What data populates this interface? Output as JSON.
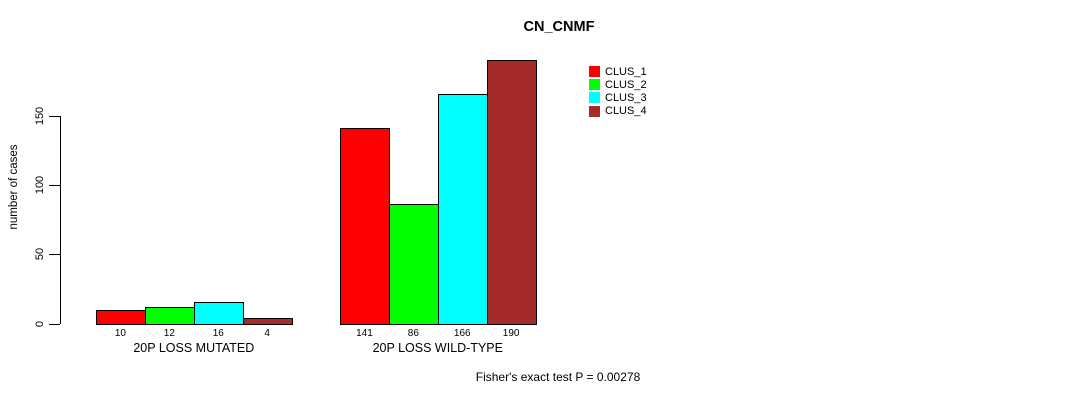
{
  "chart_data": {
    "type": "bar",
    "title": "CN_CNMF",
    "ylabel": "number of cases",
    "xlabel": "",
    "ylim": [
      0,
      193
    ],
    "yticks": [
      0,
      50,
      100,
      150
    ],
    "grid": false,
    "legend_position": "top-right",
    "categories": [
      "20P LOSS MUTATED",
      "20P LOSS WILD-TYPE"
    ],
    "series": [
      {
        "name": "CLUS_1",
        "color": "#FF0000",
        "values": [
          10,
          141
        ]
      },
      {
        "name": "CLUS_2",
        "color": "#00FF00",
        "values": [
          12,
          86
        ]
      },
      {
        "name": "CLUS_3",
        "color": "#00FFFF",
        "values": [
          16,
          166
        ]
      },
      {
        "name": "CLUS_4",
        "color": "#A52A2A",
        "values": [
          4,
          190
        ]
      }
    ],
    "bar_value_labels": [
      [
        10,
        12,
        16,
        4
      ],
      [
        141,
        86,
        166,
        190
      ]
    ],
    "annotation": "Fisher's exact test P = 0.00278"
  }
}
